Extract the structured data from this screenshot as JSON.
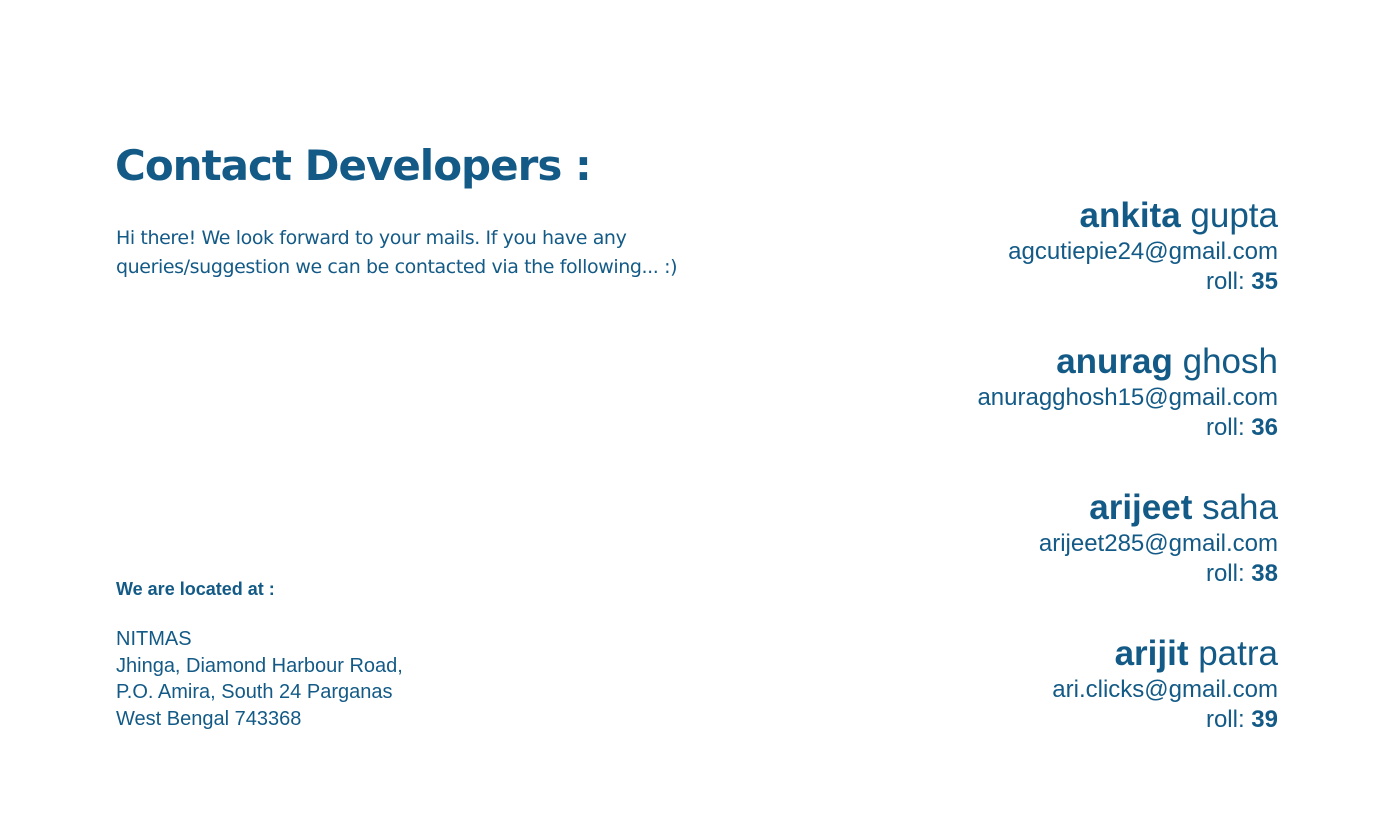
{
  "header": {
    "title": "Contact Developers :"
  },
  "intro": {
    "text": "Hi there! We look forward to your mails. If you have any queries/suggestion we can be contacted via the following... :)"
  },
  "location": {
    "heading": "We are located at :",
    "lines": [
      "NITMAS",
      "Jhinga, Diamond Harbour Road,",
      "P.O. Amira, South 24 Parganas",
      "West Bengal 743368"
    ]
  },
  "developers": [
    {
      "first_name": "ankita",
      "last_name": "gupta",
      "email": "agcutiepie24@gmail.com",
      "roll_label": "roll: ",
      "roll": "35"
    },
    {
      "first_name": "anurag",
      "last_name": "ghosh",
      "email": "anuragghosh15@gmail.com",
      "roll_label": "roll: ",
      "roll": "36"
    },
    {
      "first_name": "arijeet",
      "last_name": "saha",
      "email": "arijeet285@gmail.com",
      "roll_label": "roll: ",
      "roll": "38"
    },
    {
      "first_name": "arijit",
      "last_name": "patra",
      "email": "ari.clicks@gmail.com",
      "roll_label": "roll: ",
      "roll": "39"
    }
  ]
}
